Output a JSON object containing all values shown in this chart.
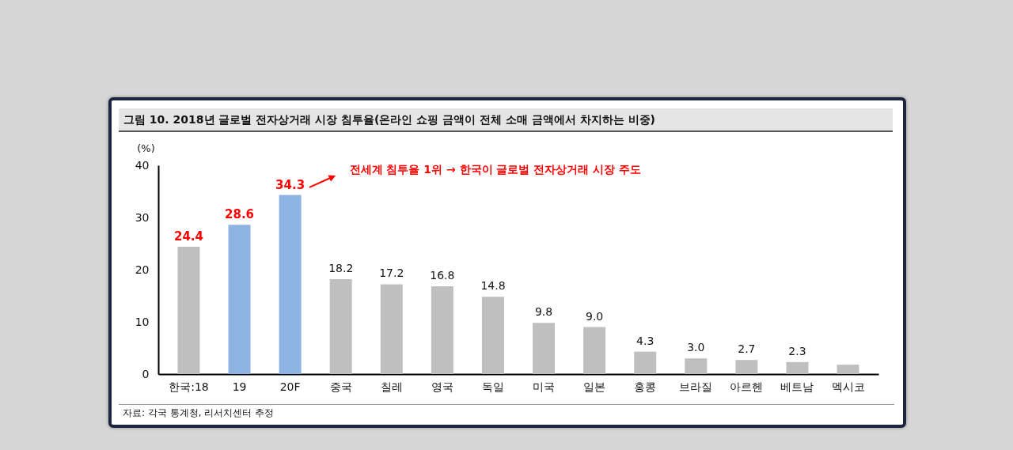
{
  "chart_data": {
    "type": "bar",
    "title": "그림 10. 2018년 글로벌 전자상거래 시장 침투율(온라인 쇼핑 금액이 전체 소매 금액에서 차지하는 비중)",
    "ylabel": "(%)",
    "categories": [
      "한국:18",
      "19",
      "20F",
      "중국",
      "칠레",
      "영국",
      "독일",
      "미국",
      "일본",
      "홍콩",
      "브라질",
      "아르헨",
      "베트남",
      "멕시코"
    ],
    "values": [
      24.4,
      28.6,
      34.3,
      18.2,
      17.2,
      16.8,
      14.8,
      9.8,
      9.0,
      4.3,
      3.0,
      2.7,
      2.3,
      1.8
    ],
    "value_labels": [
      "24.4",
      "28.6",
      "34.3",
      "18.2",
      "17.2",
      "16.8",
      "14.8",
      "9.8",
      "9.0",
      "4.3",
      "3.0",
      "2.7",
      "2.3",
      null
    ],
    "colors": [
      "#bfbfbf",
      "#8db3e2",
      "#8db3e2",
      "#bfbfbf",
      "#bfbfbf",
      "#bfbfbf",
      "#bfbfbf",
      "#bfbfbf",
      "#bfbfbf",
      "#bfbfbf",
      "#bfbfbf",
      "#bfbfbf",
      "#bfbfbf",
      "#bfbfbf"
    ],
    "ylim": [
      0,
      40
    ],
    "yticks": [
      0,
      10,
      20,
      30,
      40
    ],
    "annotations": [
      "전세계 침투율 1위 → 한국이 글로벌 전자상거래 시장 주도",
      "자료: 각국 통계청, 리서치센터 추정"
    ]
  }
}
